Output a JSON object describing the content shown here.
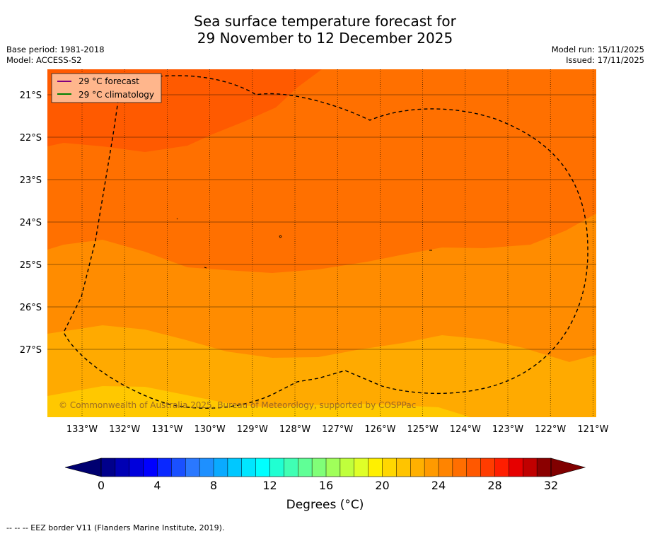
{
  "title": {
    "line1": "Sea surface temperature forecast for",
    "line2": "29 November to 12 December 2025"
  },
  "meta_left": {
    "base_period": "Base period: 1981-2018",
    "model": "Model: ACCESS-S2"
  },
  "meta_right": {
    "model_run": "Model run: 15/11/2025",
    "issued": "Issued: 17/11/2025"
  },
  "legend": {
    "forecast": "29 °C  forecast",
    "climatology": "29 °C  climatology",
    "forecast_color": "#800080",
    "climatology_color": "#008000"
  },
  "copyright": "© Commonwealth of Australia 2025, Bureau of Meteorology, supported by COSPPac",
  "footer": "--  --  -- EEZ border V11 (Flanders Marine Institute, 2019).",
  "axes": {
    "x_ticks": [
      "133°W",
      "132°W",
      "131°W",
      "130°W",
      "129°W",
      "128°W",
      "127°W",
      "126°W",
      "125°W",
      "124°W",
      "123°W",
      "122°W",
      "121°W"
    ],
    "y_ticks": [
      "21°S",
      "22°S",
      "23°S",
      "24°S",
      "25°S",
      "26°S",
      "27°S"
    ]
  },
  "colorbar": {
    "label": "Degrees (°C)",
    "ticks": [
      "0",
      "4",
      "8",
      "12",
      "16",
      "20",
      "24",
      "28",
      "32"
    ],
    "min": 0,
    "max": 32,
    "step": 1,
    "colors": [
      "#00008b",
      "#0000b4",
      "#0000dc",
      "#0000ff",
      "#0a28ff",
      "#1a50ff",
      "#2a78ff",
      "#1e90ff",
      "#0aaaff",
      "#00c8ff",
      "#00e6ff",
      "#00ffff",
      "#20ffd2",
      "#40ffb4",
      "#60ff96",
      "#80ff78",
      "#a0ff5a",
      "#c0ff3c",
      "#dfff28",
      "#fff000",
      "#ffd700",
      "#ffc400",
      "#ffb000",
      "#ff9a00",
      "#ff8400",
      "#ff6e00",
      "#ff5800",
      "#ff3c00",
      "#ff1e00",
      "#e60000",
      "#c00000",
      "#8b0000"
    ],
    "under_color": "#000070",
    "over_color": "#800000"
  },
  "chart_data": {
    "type": "heatmap",
    "title": "Sea surface temperature forecast for 29 November to 12 December 2025",
    "variable": "Sea surface temperature (°C)",
    "lon_range": [
      -133.8,
      -120.9
    ],
    "lat_range": [
      -28.7,
      -20.6
    ],
    "isotherm_bands_degC": [
      {
        "range": "27-28",
        "color": "#ff5a00",
        "region": "north-west corner"
      },
      {
        "range": "26-27",
        "color": "#ff7000",
        "region": "north and central"
      },
      {
        "range": "25-26",
        "color": "#ff8c00",
        "region": "central-south"
      },
      {
        "range": "24-25",
        "color": "#ffaa00",
        "region": "south"
      },
      {
        "range": "23-24",
        "color": "#ffc800",
        "region": "far south"
      }
    ],
    "legend": [
      "29 °C forecast",
      "29 °C climatology"
    ]
  }
}
